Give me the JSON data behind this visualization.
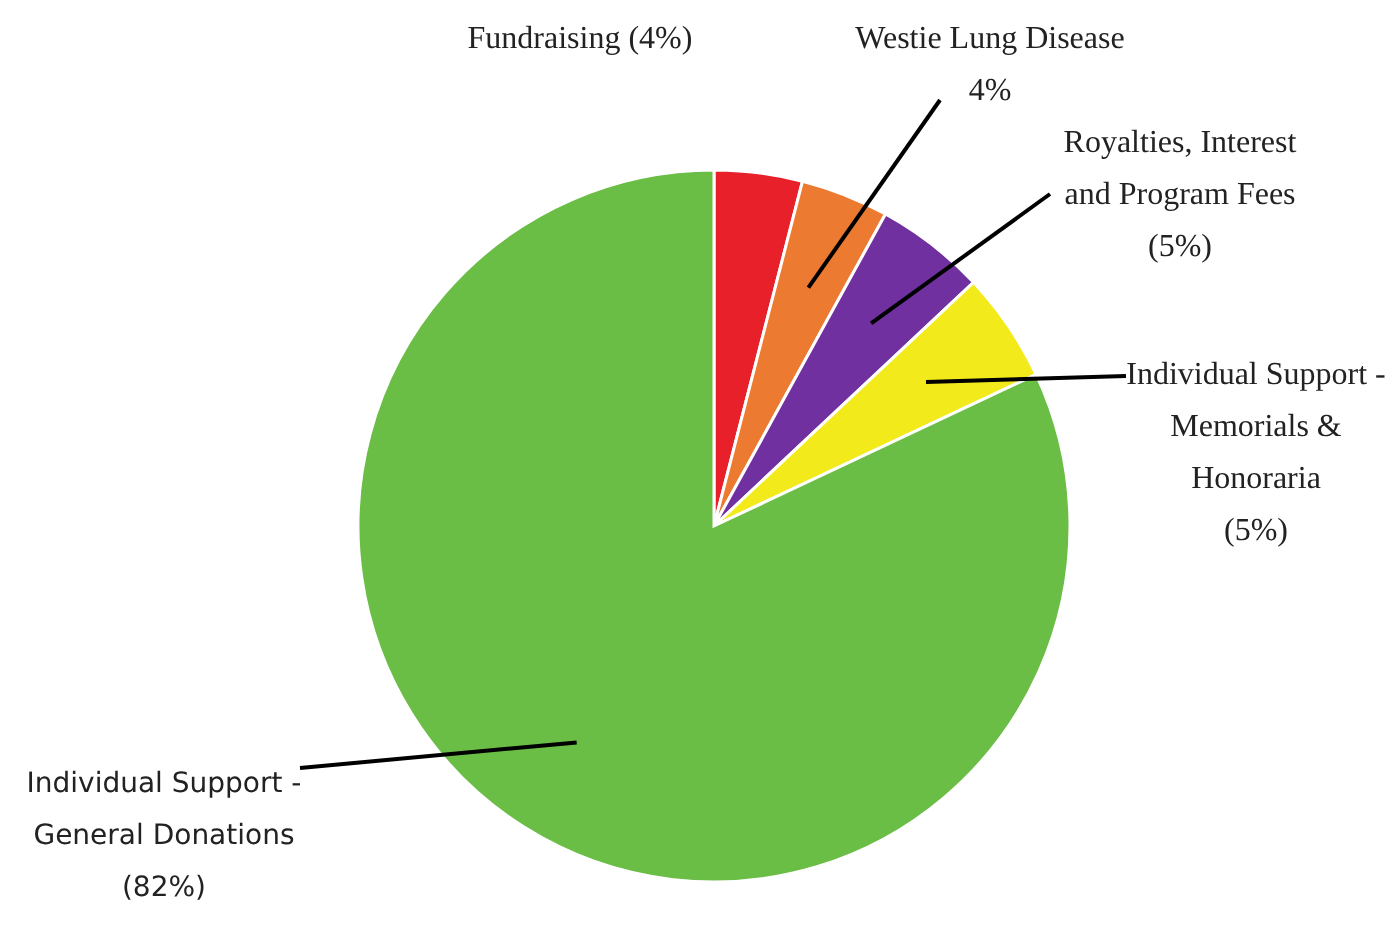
{
  "chart_data": {
    "type": "pie",
    "categories": [
      "Fundraising",
      "Westie Lung Disease",
      "Royalties, Interest and Program Fees",
      "Individual Support - Memorials & Honoraria",
      "Individual Support - General Donations"
    ],
    "values": [
      4,
      4,
      5,
      5,
      82
    ],
    "value_labels": [
      "(4%)",
      "4%",
      "(5%)",
      "(5%)",
      "(82%)"
    ],
    "colors": [
      "#e8202a",
      "#ec7a30",
      "#7030a0",
      "#f2ea1b",
      "#6abd45"
    ]
  }
}
